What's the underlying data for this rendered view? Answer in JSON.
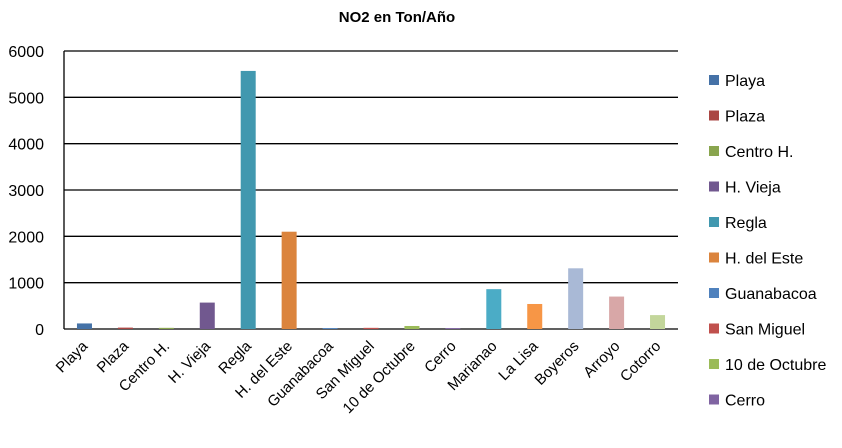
{
  "chart_data": {
    "type": "bar",
    "title": "NO2 en Ton/Año",
    "xlabel": "",
    "ylabel": "",
    "ylim": [
      0,
      6000
    ],
    "yticks": [
      0,
      1000,
      2000,
      3000,
      4000,
      5000,
      6000
    ],
    "grid": true,
    "legend_position": "right",
    "categories": [
      "Playa",
      "Plaza",
      "Centro H.",
      "H. Vieja",
      "Regla",
      "H. del Este",
      "Guanabacoa",
      "San Miguel",
      "10 de Octubre",
      "Cerro",
      "Marianao",
      "La Lisa",
      "Boyeros",
      "Arroyo",
      "Cotorro"
    ],
    "values": [
      120,
      30,
      25,
      570,
      5570,
      2100,
      20,
      25,
      65,
      20,
      860,
      540,
      1310,
      700,
      300
    ],
    "colors": [
      "#4572a7",
      "#aa4643",
      "#89a54e",
      "#71588f",
      "#4198af",
      "#db843d",
      "#4f81bd",
      "#c0504d",
      "#9bbb59",
      "#8064a2",
      "#4bacc6",
      "#f79646",
      "#a9b9d6",
      "#d8a7a7",
      "#c3d69b"
    ],
    "legend": [
      {
        "label": "Playa",
        "color": "#4572a7"
      },
      {
        "label": "Plaza",
        "color": "#aa4643"
      },
      {
        "label": "Centro H.",
        "color": "#89a54e"
      },
      {
        "label": "H. Vieja",
        "color": "#71588f"
      },
      {
        "label": "Regla",
        "color": "#4198af"
      },
      {
        "label": "H. del Este",
        "color": "#db843d"
      },
      {
        "label": "Guanabacoa",
        "color": "#4f81bd"
      },
      {
        "label": "San Miguel",
        "color": "#c0504d"
      },
      {
        "label": "10 de Octubre",
        "color": "#9bbb59"
      },
      {
        "label": "Cerro",
        "color": "#8064a2"
      }
    ]
  }
}
